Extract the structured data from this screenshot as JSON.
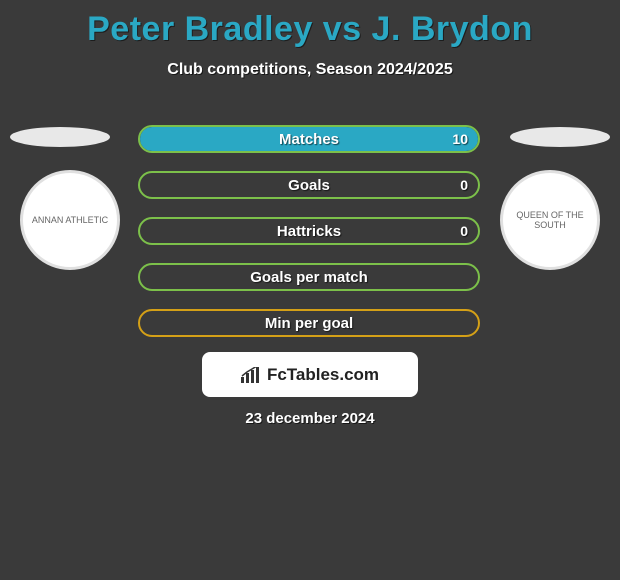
{
  "title": "Peter Bradley vs J. Brydon",
  "subtitle": "Club competitions, Season 2024/2025",
  "logo_text": "FcTables.com",
  "date": "23 december 2024",
  "colors": {
    "background": "#3a3a3a",
    "title": "#2aa8c4",
    "bar_fill_blue": "#2aa8c4",
    "bar_border_green": "#7cc04a",
    "bar_border_orange": "#d4a017",
    "text": "#ffffff"
  },
  "left_club": "ANNAN ATHLETIC",
  "right_club": "QUEEN OF THE SOUTH",
  "stats": [
    {
      "label": "Matches",
      "value": "10",
      "fill_pct": 100,
      "fill_color": "#2aa8c4",
      "border_color": "#7cc04a",
      "show_value": true
    },
    {
      "label": "Goals",
      "value": "0",
      "fill_pct": 0,
      "fill_color": "#2aa8c4",
      "border_color": "#7cc04a",
      "show_value": true
    },
    {
      "label": "Hattricks",
      "value": "0",
      "fill_pct": 0,
      "fill_color": "#2aa8c4",
      "border_color": "#7cc04a",
      "show_value": true
    },
    {
      "label": "Goals per match",
      "value": "",
      "fill_pct": 0,
      "fill_color": "#2aa8c4",
      "border_color": "#7cc04a",
      "show_value": false
    },
    {
      "label": "Min per goal",
      "value": "",
      "fill_pct": 0,
      "fill_color": "#2aa8c4",
      "border_color": "#d4a017",
      "show_value": false
    }
  ]
}
